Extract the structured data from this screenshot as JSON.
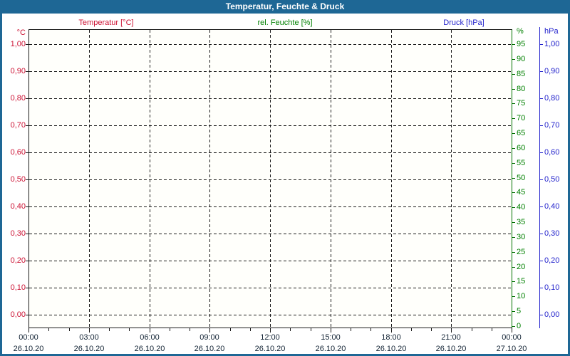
{
  "window": {
    "title": "Temperatur, Feuchte & Druck"
  },
  "colors": {
    "titlebar_bg": "#1e6795",
    "titlebar_text": "#ffffff",
    "frame_border": "#1e6795",
    "temperature": "#cc1133",
    "humidity": "#008000",
    "humidity_axis_line": "#007000",
    "pressure": "#2222cc",
    "gridline": "#1a1a1a",
    "x_text": "#112233",
    "plot_bg": "#fffffb",
    "page_bg": "#ffffff"
  },
  "series_labels": [
    {
      "label": "Temperatur [°C]",
      "color_key": "temperature"
    },
    {
      "label": "rel. Feuchte [%]",
      "color_key": "humidity"
    },
    {
      "label": "Druck [hPa]",
      "color_key": "pressure"
    }
  ],
  "axes": {
    "left_temperature": {
      "header": "°C",
      "ticks": [
        "1,00",
        "0,90",
        "0,80",
        "0,70",
        "0,60",
        "0,50",
        "0,40",
        "0,30",
        "0,20",
        "0,10",
        "0,00"
      ]
    },
    "right_humidity": {
      "header": "%",
      "ticks": [
        "95",
        "90",
        "85",
        "80",
        "75",
        "70",
        "65",
        "60",
        "55",
        "50",
        "45",
        "40",
        "35",
        "30",
        "25",
        "20",
        "15",
        "10",
        "5",
        "0"
      ]
    },
    "right_pressure": {
      "header": "hPa",
      "ticks": [
        "1,00",
        "0,90",
        "0,80",
        "0,70",
        "0,60",
        "0,50",
        "0,40",
        "0,30",
        "0,20",
        "0,10",
        "0,00"
      ]
    },
    "x_time": {
      "times": [
        "00:00",
        "03:00",
        "06:00",
        "09:00",
        "12:00",
        "15:00",
        "18:00",
        "21:00",
        "00:00"
      ],
      "dates": [
        "26.10.20",
        "26.10.20",
        "26.10.20",
        "26.10.20",
        "26.10.20",
        "26.10.20",
        "26.10.20",
        "26.10.20",
        "27.10.20"
      ]
    }
  },
  "chart_data": {
    "type": "line",
    "title": "Temperatur, Feuchte & Druck",
    "x": {
      "tick_labels_time": [
        "00:00",
        "03:00",
        "06:00",
        "09:00",
        "12:00",
        "15:00",
        "18:00",
        "21:00",
        "00:00"
      ],
      "tick_labels_date": [
        "26.10.20",
        "26.10.20",
        "26.10.20",
        "26.10.20",
        "26.10.20",
        "26.10.20",
        "26.10.20",
        "26.10.20",
        "27.10.20"
      ],
      "range": [
        "26.10.20 00:00",
        "27.10.20 00:00"
      ],
      "major_tick_interval_hours": 3,
      "minor_tick_interval_hours": 1
    },
    "y_axes": [
      {
        "id": "temperature",
        "label": "Temperatur [°C]",
        "unit": "°C",
        "side": "left",
        "min": 0.0,
        "max": 1.0,
        "tick_step": 0.1,
        "color": "#cc1133"
      },
      {
        "id": "humidity",
        "label": "rel. Feuchte [%]",
        "unit": "%",
        "side": "right",
        "min": 0,
        "max": 100,
        "tick_step": 5,
        "color": "#008000"
      },
      {
        "id": "pressure",
        "label": "Druck [hPa]",
        "unit": "hPa",
        "side": "right",
        "min": 0.0,
        "max": 1.0,
        "tick_step": 0.1,
        "color": "#2222cc"
      }
    ],
    "series": [
      {
        "name": "Temperatur [°C]",
        "axis": "temperature",
        "values": []
      },
      {
        "name": "rel. Feuchte [%]",
        "axis": "humidity",
        "values": []
      },
      {
        "name": "Druck [hPa]",
        "axis": "pressure",
        "values": []
      }
    ],
    "grid": true,
    "legend_position": "top"
  }
}
